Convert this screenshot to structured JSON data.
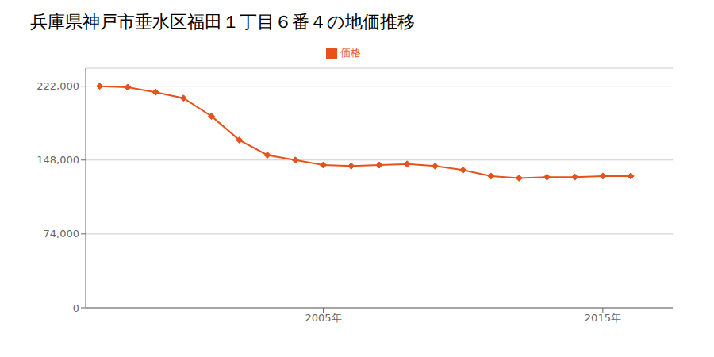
{
  "chart_data": {
    "type": "line",
    "title": "兵庫県神戸市垂水区福田１丁目６番４の地価推移",
    "x": [
      1997,
      1998,
      1999,
      2000,
      2001,
      2002,
      2003,
      2004,
      2005,
      2006,
      2007,
      2008,
      2009,
      2010,
      2011,
      2012,
      2013,
      2014,
      2015,
      2016
    ],
    "series": [
      {
        "name": "価格",
        "color": "#e8521a",
        "marker": "diamond",
        "values": [
          222000,
          221000,
          216000,
          210000,
          192000,
          168000,
          153000,
          148000,
          143000,
          142000,
          143000,
          144000,
          142000,
          138000,
          132000,
          130000,
          131000,
          131000,
          132000,
          132000
        ]
      }
    ],
    "xlim": [
      1996.5,
      2017.5
    ],
    "xticks": [
      {
        "value": 2005,
        "label": "2005年"
      },
      {
        "value": 2015,
        "label": "2015年"
      }
    ],
    "ylim": [
      0,
      240000
    ],
    "yticks": [
      0,
      {
        "value": 74000,
        "label": "74,000"
      },
      {
        "value": 148000,
        "label": "148,000"
      },
      {
        "value": 222000,
        "label": "222,000"
      }
    ],
    "grid": "y",
    "legend": "top"
  }
}
